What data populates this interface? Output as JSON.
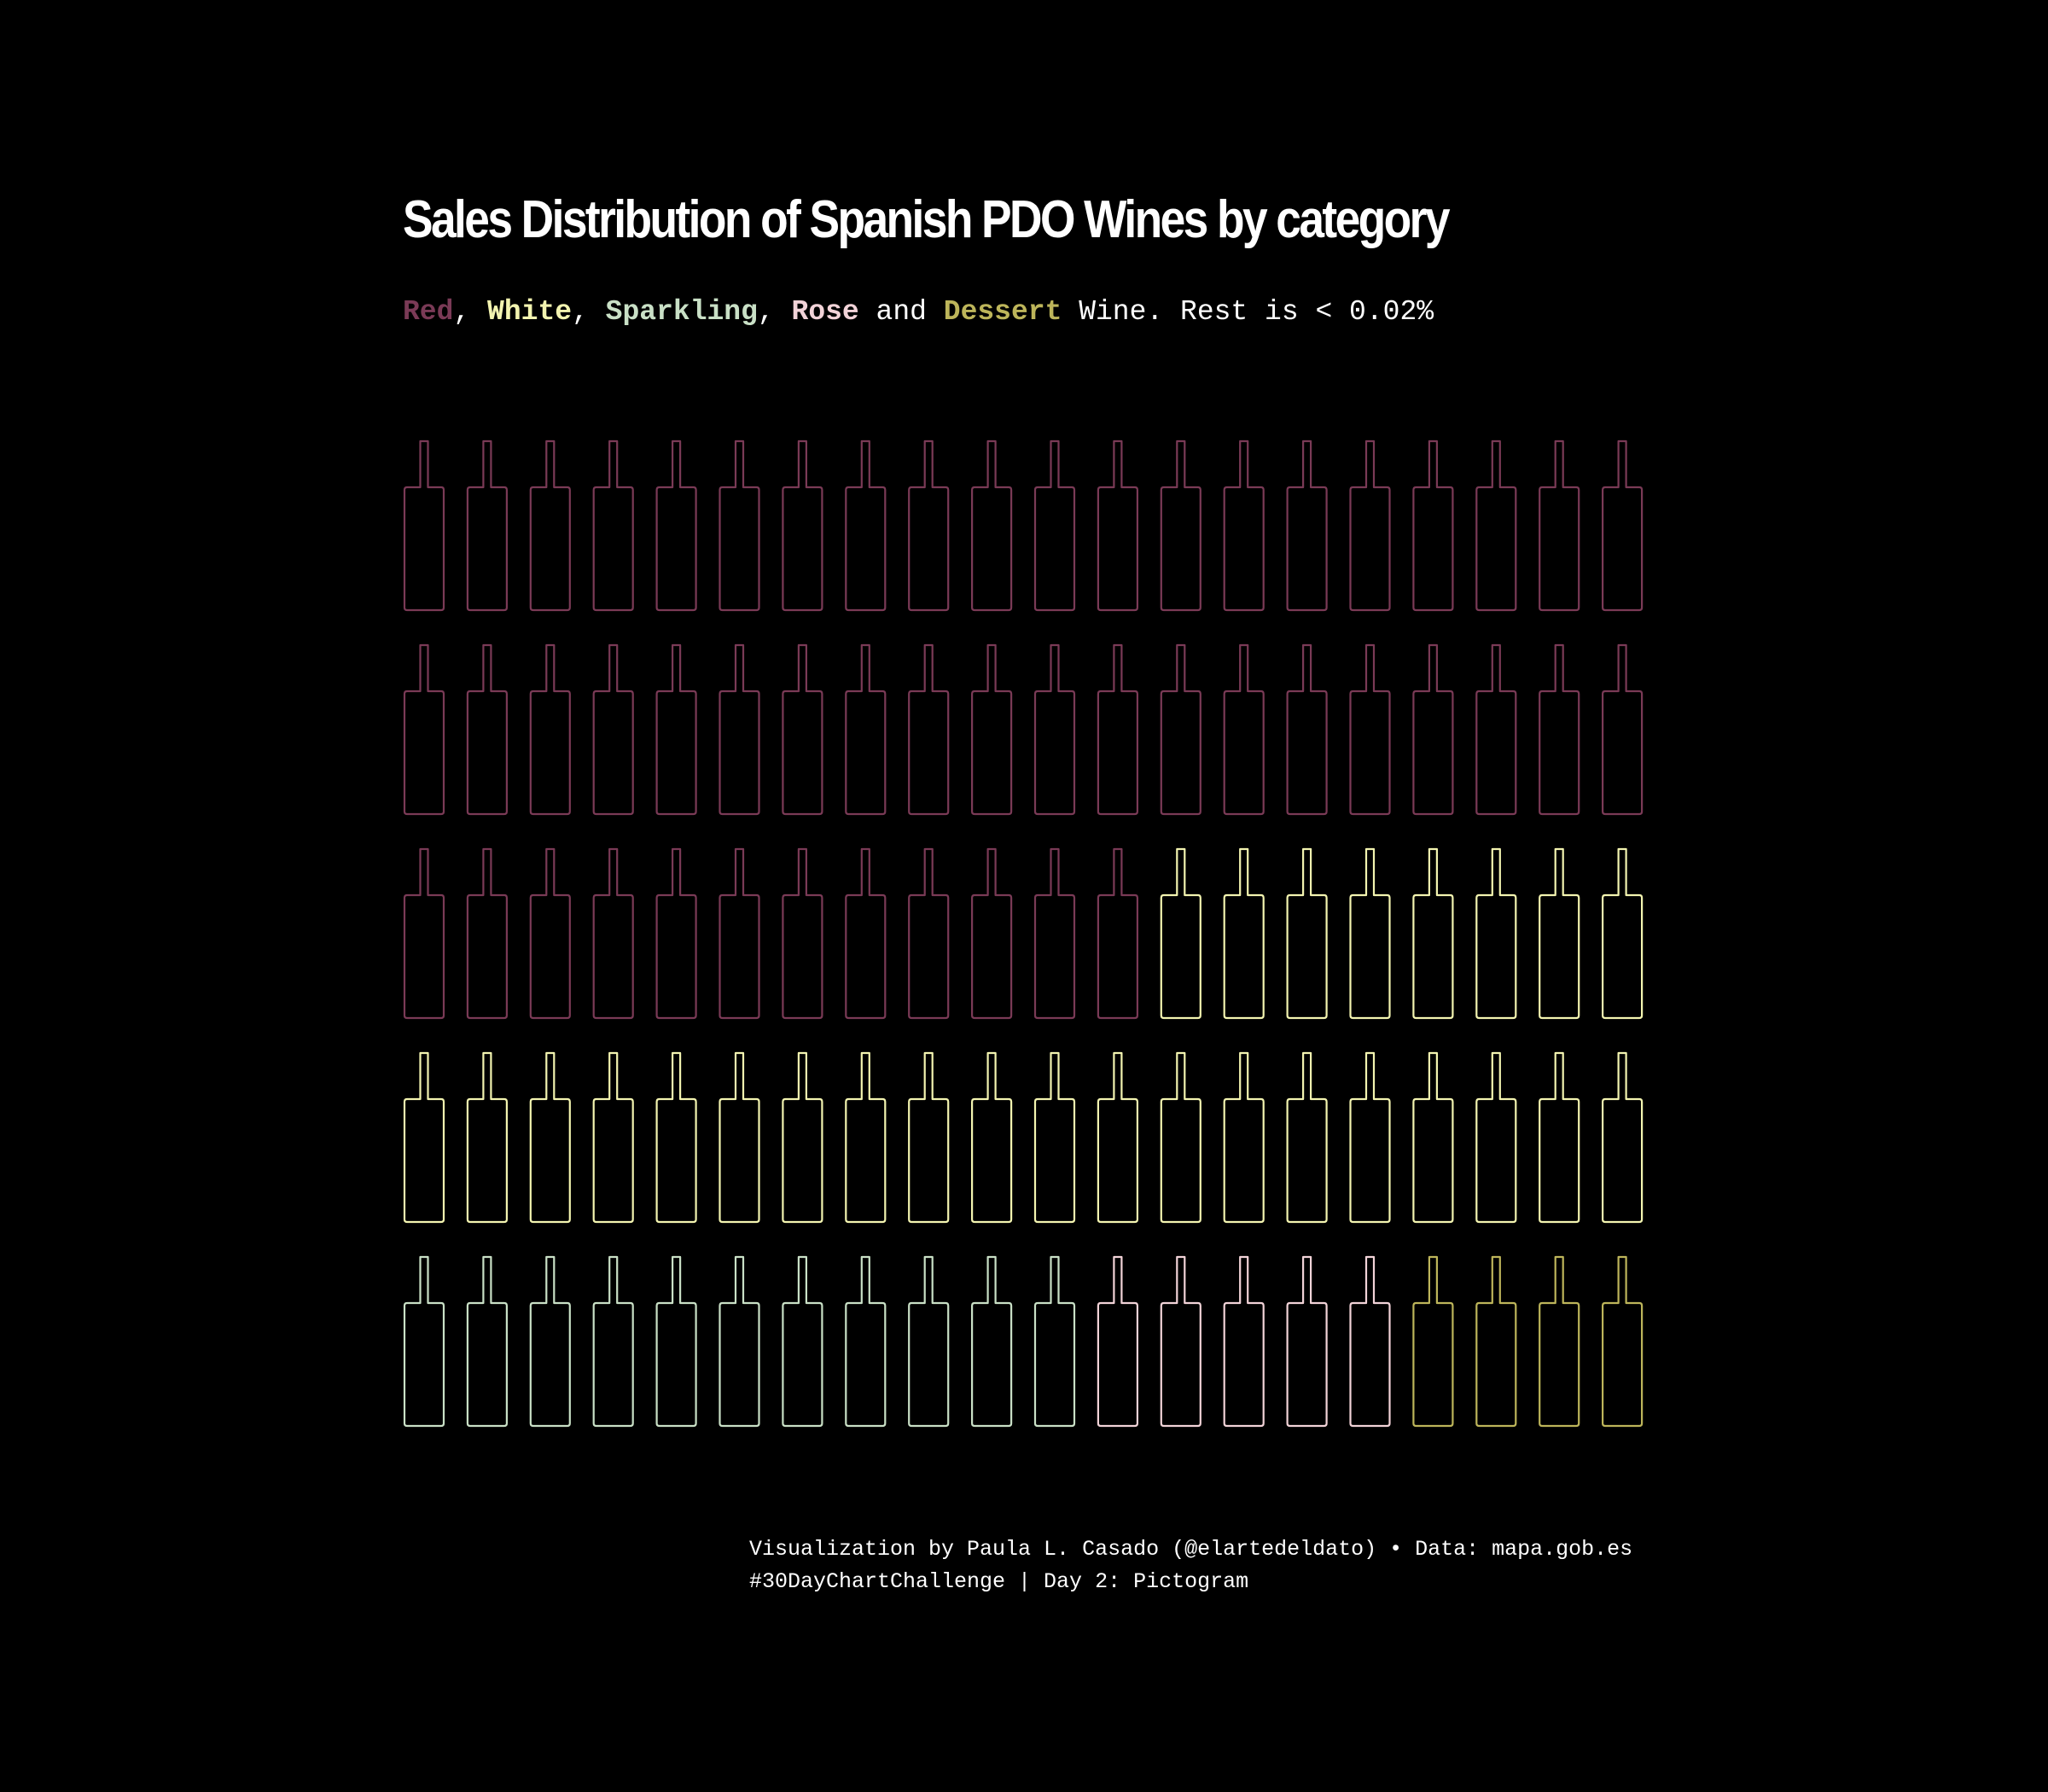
{
  "title": "Sales Distribution of Spanish PDO Wines by category",
  "subtitle": {
    "red": "Red",
    "sep1": ", ",
    "white": "White",
    "sep2": ", ",
    "sparkling": "Sparkling",
    "sep3": ", ",
    "rose": "Rose",
    "and": " and ",
    "dessert": "Dessert",
    "rest": " Wine. Rest is < 0.02%"
  },
  "caption": {
    "line1": "Visualization by Paula L. Casado (@elartedeldato) • Data: mapa.gob.es",
    "line2": "#30DayChartChallenge | Day 2: Pictogram"
  },
  "colors": {
    "background": "#000000",
    "Red": "#7a3a56",
    "White": "#f3f4b0",
    "Sparkling": "#c9e0c6",
    "Rose": "#f2d3d8",
    "Dessert": "#bdb55a"
  },
  "chart_data": {
    "type": "pictogram",
    "icon": "wine-bottle-icon",
    "units_per_icon": "1%",
    "columns": 20,
    "rows": 5,
    "categories": [
      "Red",
      "White",
      "Sparkling",
      "Rose",
      "Dessert"
    ],
    "values": [
      52,
      28,
      11,
      5,
      4
    ],
    "fill_order": "row-major, top-left to bottom-right",
    "note_text": "Rest is < 0.02%"
  }
}
